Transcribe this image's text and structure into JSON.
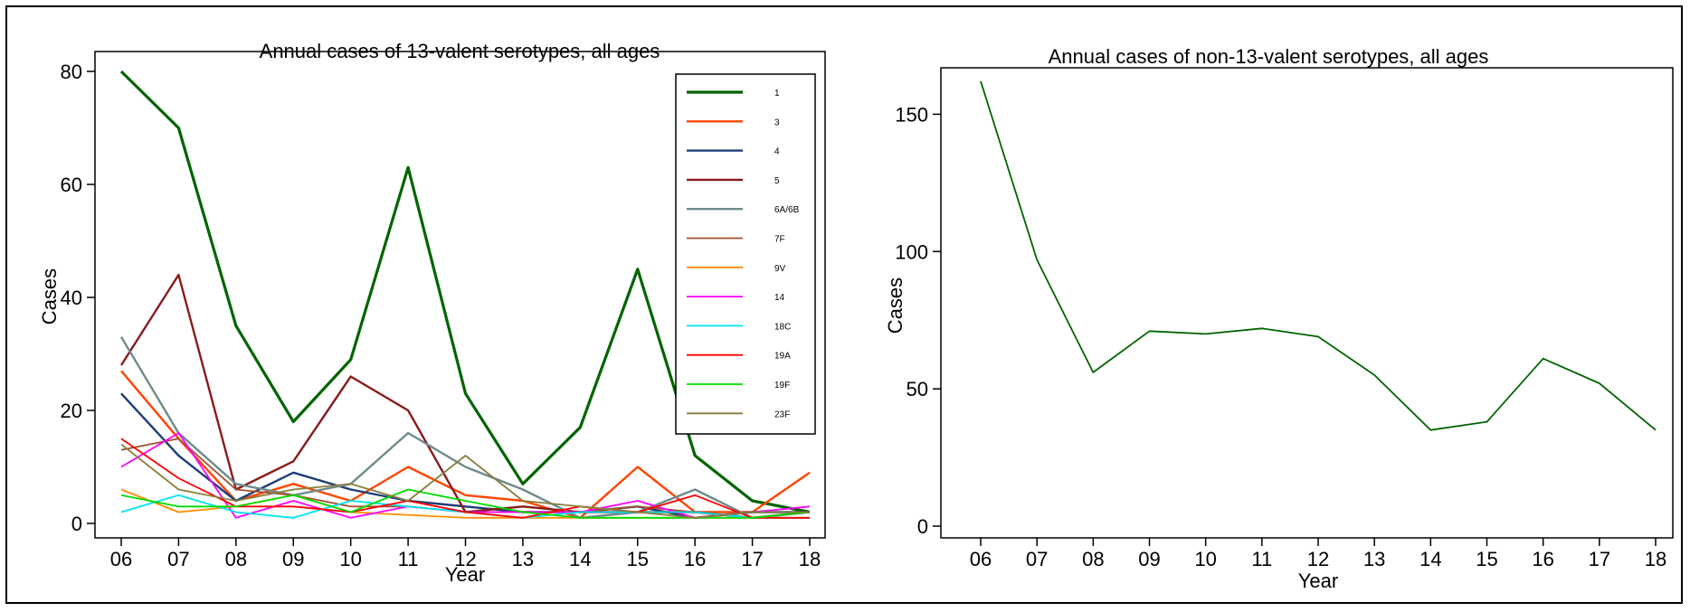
{
  "chart_data": [
    {
      "type": "line",
      "title": "Annual cases of 13-valent serotypes, all ages",
      "xlabel": "Year",
      "ylabel": "Cases",
      "categories": [
        "06",
        "07",
        "08",
        "09",
        "10",
        "11",
        "12",
        "13",
        "14",
        "15",
        "16",
        "17",
        "18"
      ],
      "ylim": [
        0,
        80
      ],
      "yticks": [
        0,
        20,
        40,
        60,
        80
      ],
      "legend_position": "top-right",
      "series": [
        {
          "name": "1",
          "color": "#006400",
          "width": 3.2,
          "values": [
            80,
            70,
            35,
            18,
            29,
            63,
            23,
            7,
            17,
            45,
            12,
            4,
            2
          ]
        },
        {
          "name": "3",
          "color": "#ff4500",
          "width": 2.4,
          "values": [
            27,
            15,
            4,
            7,
            4,
            10,
            5,
            4,
            1,
            10,
            2,
            2,
            9
          ]
        },
        {
          "name": "4",
          "color": "#1f3f77",
          "width": 2.4,
          "values": [
            23,
            12,
            4,
            9,
            6,
            4,
            3,
            2,
            2,
            3,
            1,
            2,
            2
          ]
        },
        {
          "name": "5",
          "color": "#8b1a1a",
          "width": 2.4,
          "values": [
            28,
            44,
            6,
            11,
            26,
            20,
            2,
            3,
            2,
            2,
            2,
            1,
            2
          ]
        },
        {
          "name": "6A/6B",
          "color": "#6e8b8b",
          "width": 2.4,
          "values": [
            33,
            16,
            7,
            5,
            7,
            16,
            10,
            6,
            1,
            2,
            6,
            1,
            2
          ]
        },
        {
          "name": "7F",
          "color": "#a0522d",
          "width": 1.8,
          "values": [
            13,
            15,
            6,
            5,
            3,
            3,
            2,
            2,
            2,
            3,
            2,
            1,
            2
          ]
        },
        {
          "name": "9V",
          "color": "#ff8c00",
          "width": 1.8,
          "values": [
            6,
            2,
            3,
            5,
            2,
            1.5,
            1,
            1,
            1,
            1,
            1,
            1,
            1
          ]
        },
        {
          "name": "14",
          "color": "#ff00ff",
          "width": 1.8,
          "values": [
            10,
            16,
            1,
            4,
            1,
            3,
            2,
            2,
            2,
            4,
            1,
            2,
            3
          ]
        },
        {
          "name": "18C",
          "color": "#00e5ee",
          "width": 1.8,
          "values": [
            2,
            5,
            2,
            1,
            4,
            3,
            2,
            1,
            2,
            2,
            2,
            1,
            1
          ]
        },
        {
          "name": "19A",
          "color": "#ff0000",
          "width": 1.8,
          "values": [
            15,
            8,
            3,
            3,
            2,
            4,
            2,
            1,
            3,
            2,
            5,
            1,
            1
          ]
        },
        {
          "name": "19F",
          "color": "#00dd00",
          "width": 1.8,
          "values": [
            5,
            3,
            3,
            5,
            2,
            6,
            4,
            2,
            1,
            1,
            1,
            1,
            2
          ]
        },
        {
          "name": "23F",
          "color": "#8b7d3c",
          "width": 1.8,
          "values": [
            14,
            6,
            4,
            6,
            7,
            4,
            12,
            4,
            3,
            2,
            1,
            2,
            2
          ]
        }
      ]
    },
    {
      "type": "line",
      "title": "Annual cases of non-13-valent serotypes, all ages",
      "xlabel": "Year",
      "ylabel": "Cases",
      "categories": [
        "06",
        "07",
        "08",
        "09",
        "10",
        "11",
        "12",
        "13",
        "14",
        "15",
        "16",
        "17",
        "18"
      ],
      "ylim": [
        0,
        160
      ],
      "yticks": [
        0,
        50,
        100,
        150
      ],
      "series": [
        {
          "color": "#006400",
          "width": 1.8,
          "values": [
            162,
            97,
            56,
            71,
            70,
            72,
            69,
            55,
            35,
            38,
            61,
            52,
            35
          ]
        }
      ]
    }
  ]
}
